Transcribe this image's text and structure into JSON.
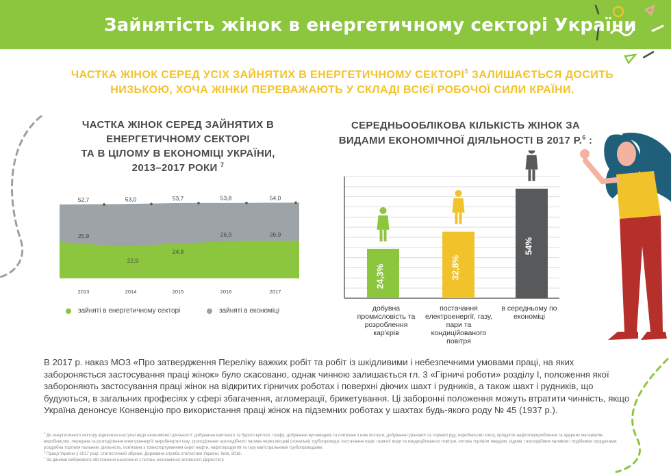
{
  "header": {
    "title": "Зайнятість жінок в енергетичному секторі України"
  },
  "subtitle": {
    "line1": "ЧАСТКА ЖІНОК СЕРЕД УСІХ ЗАЙНЯТИХ В ЕНЕРГЕТИЧНОМУ СЕКТОРІ",
    "line1_sup": "5",
    "line1_tail": " ЗАЛИШАЄТЬСЯ ДОСИТЬ",
    "line2": "НИЗЬКОЮ, ХОЧА ЖІНКИ ПЕРЕВАЖАЮТЬ У СКЛАДІ ВСІЄЇ РОБОЧОЇ СИЛИ КРАЇНИ."
  },
  "left_chart": {
    "title_l1": "ЧАСТКА ЖІНОК СЕРЕД ЗАЙНЯТИХ В",
    "title_l2": "ЕНЕРГЕТИЧНОМУ СЕКТОРІ",
    "title_l3": "ТА В ЦІЛОМУ В ЕКОНОМІЦІ УКРАЇНИ,",
    "title_l4": "2013–2017 РОКИ",
    "title_sup": "7",
    "legend_energy": "зайняті в енергетичному секторі",
    "legend_economy": "зайняті в економіці"
  },
  "right_chart": {
    "title_l1": "СЕРЕДНЬООБЛІКОВА КІЛЬКІСТЬ ЖІНОК ЗА",
    "title_l2": "ВИДАМИ ЕКОНОМІЧНОЇ ДІЯЛЬНОСТІ В 2017 Р.",
    "title_sup": "6",
    "title_tail": " :",
    "cat1_l1": "добувна",
    "cat1_l2": "промисловість та",
    "cat1_l3": "розроблення",
    "cat1_l4": "кар'єрів",
    "cat2_l1": "постачання",
    "cat2_l2": "електроенергії, газу,",
    "cat2_l3": "пари та",
    "cat2_l4": "кондиційованого",
    "cat2_l5": "повітря",
    "cat3_l1": "в середньому по",
    "cat3_l2": "економіці"
  },
  "chart_data": [
    {
      "type": "area",
      "x": [
        "2013",
        "2014",
        "2015",
        "2016",
        "2017"
      ],
      "series": [
        {
          "name": "зайняті в економіці",
          "values": [
            52.7,
            53.0,
            53.7,
            53.8,
            54.0
          ],
          "labels": [
            "52,7",
            "53,0",
            "53,7",
            "53,8",
            "54,0"
          ],
          "color": "#9da3a7"
        },
        {
          "name": "зайняті в енергетичному секторі",
          "values": [
            25.9,
            22.9,
            24.8,
            26.9,
            26.9
          ],
          "labels": [
            "25,9",
            "22,9",
            "24,8",
            "26,9",
            "26,9"
          ],
          "color": "#8cc63f"
        }
      ],
      "ylim": [
        0,
        60
      ]
    },
    {
      "type": "bar",
      "categories": [
        "добувна промисловість та розроблення кар'єрів",
        "постачання електроенергії, газу, пари та кондиційованого повітря",
        "в середньому по економіці"
      ],
      "values": [
        24.3,
        32.8,
        54
      ],
      "labels": [
        "24,3%",
        "32,8%",
        "54%"
      ],
      "colors": [
        "#8cc63f",
        "#f2c22a",
        "#58595b"
      ],
      "ylim": [
        0,
        60
      ],
      "grid": true
    }
  ],
  "body": {
    "text": "В 2017 р. наказ МОЗ «Про затвердження Переліку важких робіт та робіт із шкідливими і небезпечними умовами праці, на яких забороняється застосування праці жінок» було скасовано, однак чинною залишається гл. 3 «Гірничі роботи» розділу І, положення якої забороняють застосування праці жінок на відкритих гірничих роботах і поверхні діючих шахт і рудників, а також шахт і рудників, що будуються, в загальних професіях у сфері збагачення, агломерації, брикетування. Ці заборонні положення можуть втратити чинність, якщо Україна денонсує Конвенцію про використання праці жінок на підземних роботах у шахтах будь-якого роду № 45 (1937 р.)."
  },
  "footnotes": {
    "f5": "До енергетичного сектору віднесено наступні види економічної діяльності: добування кам'яного та бурого вугілля, торфу; добування вуглеводнів та пов'язані з ним послуги; добування уранової та торієвої руд; виробництво коксу, продуктів нафтоперероблення та ядерних матеріалів; виробництво, передача та розподілення електроенергії; виробництво газу; розподілення газоподібного палива через місцеві (локальні) трубопроводи; постачання пари, гарячої води та кондиційованого повітря; оптова торгівля твердим, рідким, газоподібним паливом і подібними продуктами; роздрібна торгівля пальним; діяльність, пов'язана з транспортуванням сирої нафти, нафтопродуктів та газу магістральними трубопроводами.",
    "f6": "Праця України у 2017 році: статистичний збірник. Державна служба статистики України, Київ, 2018.",
    "f7": "За даними вибіркового обстеження населення з питань економічної активності Держстату."
  }
}
